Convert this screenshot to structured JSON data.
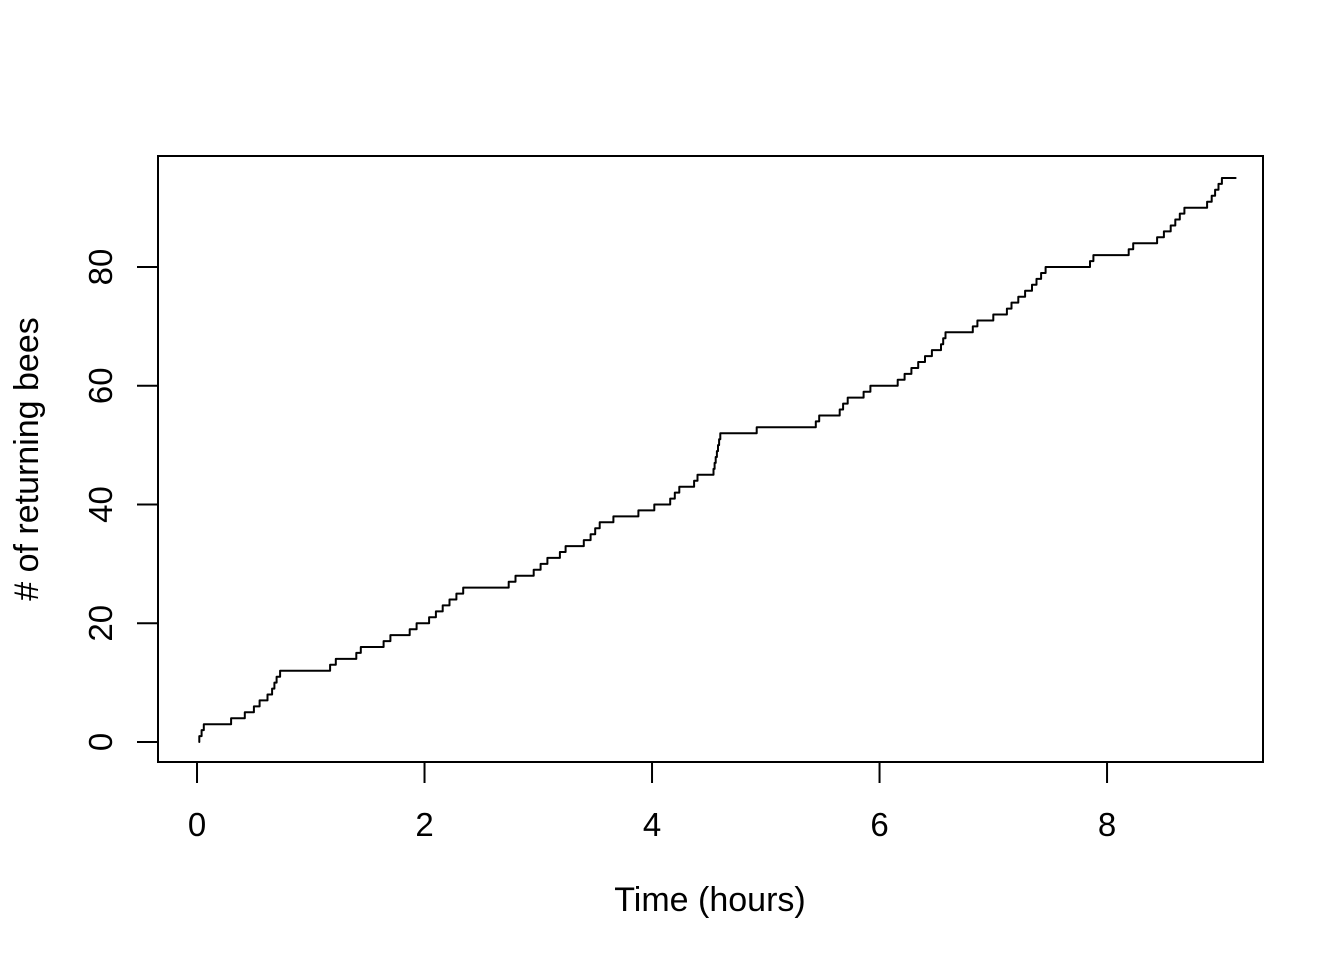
{
  "figure": {
    "background_color": "#ffffff",
    "line_color": "#000000",
    "text_color": "#000000"
  },
  "chart_data": {
    "type": "line",
    "subtype": "step-cumulative-count",
    "title": "",
    "xlabel": "Time (hours)",
    "ylabel": "# of returning bees",
    "x_ticks": [
      0,
      2,
      4,
      6,
      8
    ],
    "y_ticks": [
      0,
      20,
      40,
      60,
      80
    ],
    "xlim": [
      -0.343,
      9.371
    ],
    "ylim": [
      -3.37,
      98.7
    ],
    "grid": false,
    "legend": null,
    "start": {
      "t": 0.02,
      "count": 0
    },
    "end_t": 9.13,
    "count_after_jump_starts_at": 1,
    "jump_times": [
      0.02,
      0.04,
      0.06,
      0.3,
      0.42,
      0.5,
      0.55,
      0.62,
      0.66,
      0.68,
      0.7,
      0.73,
      1.17,
      1.22,
      1.4,
      1.44,
      1.64,
      1.7,
      1.87,
      1.93,
      2.04,
      2.1,
      2.16,
      2.22,
      2.28,
      2.34,
      2.74,
      2.8,
      2.96,
      3.02,
      3.08,
      3.19,
      3.24,
      3.4,
      3.46,
      3.5,
      3.54,
      3.66,
      3.88,
      4.02,
      4.16,
      4.2,
      4.24,
      4.37,
      4.4,
      4.54,
      4.55,
      4.56,
      4.57,
      4.58,
      4.59,
      4.6,
      4.92,
      5.44,
      5.47,
      5.65,
      5.68,
      5.72,
      5.86,
      5.92,
      6.16,
      6.22,
      6.28,
      6.34,
      6.4,
      6.46,
      6.54,
      6.56,
      6.58,
      6.82,
      6.86,
      7.0,
      7.12,
      7.16,
      7.22,
      7.28,
      7.34,
      7.38,
      7.42,
      7.46,
      7.85,
      7.88,
      8.19,
      8.23,
      8.44,
      8.5,
      8.56,
      8.6,
      8.64,
      8.68,
      8.88,
      8.92,
      8.95,
      8.98,
      9.01
    ],
    "final_count": 95
  }
}
